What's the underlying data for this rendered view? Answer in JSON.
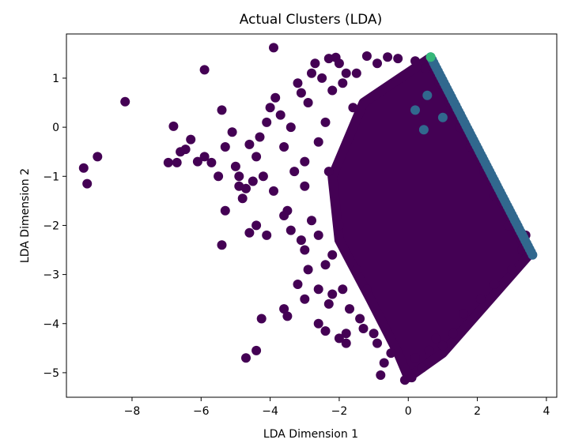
{
  "chart_data": {
    "type": "scatter",
    "title": "Actual Clusters (LDA)",
    "xlabel": "LDA Dimension 1",
    "ylabel": "LDA Dimension 2",
    "xlim": [
      -9.9,
      4.3
    ],
    "ylim": [
      -5.5,
      1.9
    ],
    "xticks": [
      -8,
      -6,
      -4,
      -2,
      0,
      2,
      4
    ],
    "xtick_labels": [
      "−8",
      "−6",
      "−4",
      "−2",
      "0",
      "2",
      "4"
    ],
    "yticks": [
      1,
      0,
      -1,
      -2,
      -3,
      -4,
      -5
    ],
    "ytick_labels": [
      "1",
      "0",
      "−1",
      "−2",
      "−3",
      "−4",
      "−5"
    ],
    "grid": false,
    "legend": "none",
    "dense_region": {
      "color": "#440154",
      "polygon": [
        [
          0.6,
          1.4
        ],
        [
          -1.3,
          0.5
        ],
        [
          -2.2,
          -1.0
        ],
        [
          -2.0,
          -2.3
        ],
        [
          -1.1,
          -3.5
        ],
        [
          -0.3,
          -4.6
        ],
        [
          0.0,
          -5.1
        ],
        [
          1.0,
          -4.6
        ],
        [
          3.5,
          -2.6
        ]
      ]
    },
    "series": [
      {
        "color": "#440154",
        "points": [
          [
            -9.4,
            -0.83
          ],
          [
            -9.3,
            -1.15
          ],
          [
            -9.0,
            -0.6
          ],
          [
            -8.2,
            0.52
          ],
          [
            -6.8,
            0.02
          ],
          [
            -6.6,
            -0.5
          ],
          [
            -6.7,
            -0.72
          ],
          [
            -6.45,
            -0.45
          ],
          [
            -6.3,
            -0.25
          ],
          [
            -5.9,
            1.17
          ],
          [
            -5.9,
            -0.6
          ],
          [
            -5.7,
            -0.72
          ],
          [
            -5.4,
            0.35
          ],
          [
            -5.3,
            -0.4
          ],
          [
            -5.1,
            -0.1
          ],
          [
            -5.0,
            -0.8
          ],
          [
            -4.9,
            -1.0
          ],
          [
            -4.8,
            -1.45
          ],
          [
            -4.7,
            -1.25
          ],
          [
            -4.5,
            -1.1
          ],
          [
            -4.4,
            -0.6
          ],
          [
            -4.3,
            -0.2
          ],
          [
            -4.1,
            0.1
          ],
          [
            -4.0,
            0.4
          ],
          [
            -3.9,
            1.62
          ],
          [
            -3.85,
            0.6
          ],
          [
            -3.7,
            0.25
          ],
          [
            -3.6,
            -0.4
          ],
          [
            -3.5,
            -1.7
          ],
          [
            -3.3,
            -0.9
          ],
          [
            -3.2,
            0.9
          ],
          [
            -3.1,
            0.7
          ],
          [
            -3.0,
            -0.7
          ],
          [
            -3.0,
            -1.2
          ],
          [
            -2.9,
            0.5
          ],
          [
            -2.8,
            1.1
          ],
          [
            -2.7,
            1.3
          ],
          [
            -2.6,
            -0.3
          ],
          [
            -2.5,
            1.0
          ],
          [
            -2.4,
            0.1
          ],
          [
            -2.3,
            1.4
          ],
          [
            -2.3,
            -0.9
          ],
          [
            -2.1,
            1.42
          ],
          [
            -2.0,
            1.3
          ],
          [
            -1.9,
            0.9
          ],
          [
            -1.8,
            1.1
          ],
          [
            -1.6,
            0.4
          ],
          [
            -1.2,
            1.45
          ],
          [
            -0.6,
            1.43
          ],
          [
            -5.4,
            -2.4
          ],
          [
            -5.3,
            -1.7
          ],
          [
            -4.9,
            -1.2
          ],
          [
            -4.4,
            -2.0
          ],
          [
            -4.2,
            -1.0
          ],
          [
            -3.6,
            -1.8
          ],
          [
            -3.0,
            -2.5
          ],
          [
            -2.6,
            -2.2
          ],
          [
            -2.4,
            -2.8
          ],
          [
            -2.2,
            -3.4
          ],
          [
            -2.0,
            -2.0
          ],
          [
            -3.2,
            -3.2
          ],
          [
            -3.6,
            -3.7
          ],
          [
            -3.5,
            -3.85
          ],
          [
            -3.0,
            -3.5
          ],
          [
            -2.6,
            -3.3
          ],
          [
            -2.3,
            -3.6
          ],
          [
            -2.6,
            -4.0
          ],
          [
            -1.9,
            -3.3
          ],
          [
            -1.7,
            -3.7
          ],
          [
            -1.8,
            -4.2
          ],
          [
            -4.7,
            -4.7
          ],
          [
            -4.4,
            -4.55
          ],
          [
            -4.25,
            -3.9
          ],
          [
            -2.4,
            -4.15
          ],
          [
            -2.0,
            -4.3
          ],
          [
            -1.8,
            -4.4
          ],
          [
            -1.3,
            -4.1
          ],
          [
            -0.9,
            -4.4
          ],
          [
            -0.7,
            -4.8
          ],
          [
            -0.8,
            -5.05
          ],
          [
            -0.1,
            -5.15
          ],
          [
            0.1,
            -5.1
          ],
          [
            0.4,
            -4.9
          ],
          [
            0.6,
            -4.55
          ],
          [
            1.0,
            -4.45
          ],
          [
            1.3,
            -4.2
          ],
          [
            -6.95,
            -0.72
          ],
          [
            -6.1,
            -0.7
          ],
          [
            -5.5,
            -1.0
          ],
          [
            -4.6,
            -0.35
          ],
          [
            -3.4,
            0.0
          ],
          [
            -2.2,
            0.75
          ],
          [
            -1.5,
            1.1
          ],
          [
            -0.9,
            1.3
          ],
          [
            -4.6,
            -2.15
          ],
          [
            -4.1,
            -2.2
          ],
          [
            -3.4,
            -2.1
          ],
          [
            -2.8,
            -1.9
          ],
          [
            -3.9,
            -1.3
          ],
          [
            -2.9,
            -2.9
          ],
          [
            -3.1,
            -2.3
          ],
          [
            -2.2,
            -2.6
          ],
          [
            -1.5,
            -2.9
          ],
          [
            -1.2,
            -3.3
          ],
          [
            -1.4,
            -3.9
          ],
          [
            -1.0,
            -4.2
          ],
          [
            -0.5,
            -4.6
          ],
          [
            0.2,
            -4.7
          ],
          [
            0.8,
            -4.3
          ],
          [
            1.6,
            -3.8
          ],
          [
            2.1,
            -3.5
          ],
          [
            2.5,
            -3.2
          ],
          [
            3.0,
            -2.9
          ],
          [
            3.3,
            -2.5
          ],
          [
            3.4,
            -2.2
          ],
          [
            2.9,
            -2.0
          ],
          [
            2.5,
            -1.4
          ],
          [
            2.2,
            -0.9
          ],
          [
            1.8,
            -0.4
          ],
          [
            1.5,
            0.0
          ],
          [
            1.2,
            0.5
          ],
          [
            0.9,
            0.9
          ],
          [
            0.5,
            1.2
          ],
          [
            0.2,
            1.35
          ],
          [
            -0.3,
            1.4
          ]
        ]
      },
      {
        "color": "#31688e",
        "start": [
          0.65,
          1.43
        ],
        "end": [
          3.6,
          -2.6
        ],
        "count": 70,
        "extra": [
          [
            0.2,
            0.35
          ],
          [
            0.45,
            -0.05
          ],
          [
            0.55,
            0.65
          ],
          [
            1.0,
            0.2
          ]
        ]
      },
      {
        "color": "#35b779",
        "points": [
          [
            0.65,
            1.43
          ]
        ]
      }
    ]
  }
}
